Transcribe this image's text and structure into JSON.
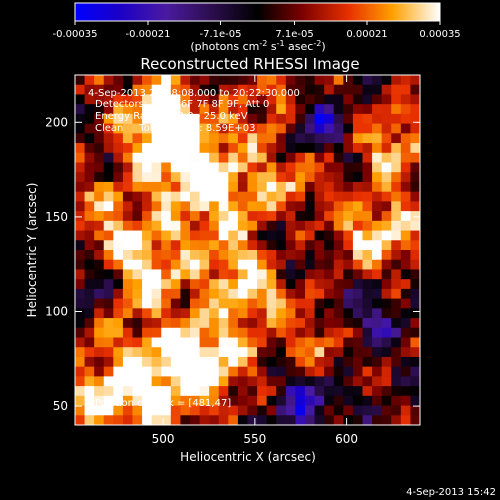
{
  "chart_data": {
    "type": "heatmap",
    "title": "Reconstructed RHESSI Image",
    "xlabel": "Heliocentric X (arcsec)",
    "ylabel": "Heliocentric Y (arcsec)",
    "xlim": [
      452,
      640
    ],
    "ylim": [
      40,
      225
    ],
    "xticks": [
      500,
      550,
      600
    ],
    "yticks": [
      50,
      100,
      150,
      200
    ],
    "colorbar": {
      "range": [
        -0.00035,
        0.00035
      ],
      "ticks": [
        "-0.00035",
        "-0.00021",
        "-7.1e-05",
        "7.1e-05",
        "0.00021",
        "0.00035"
      ],
      "tick_values": [
        -0.00035,
        -0.00021,
        -7.1e-05,
        7.1e-05,
        0.00021,
        0.00035
      ],
      "label_main": "(photons cm",
      "label_sup1": "-2",
      "label_mid": " s",
      "label_sup2": "-1",
      "label_end": " asec",
      "label_sup3": "-2",
      "label_close": ")"
    },
    "annotations": [
      "4-Sep-2013 20:18:08.000 to 20:22:30.000",
      "Detectors: 3F 5F 6F 7F 8F 9F, Att 0",
      "Energy Range: 12.0 - 25.0 keV",
      "Clean     Total counts: 8.59E+03"
    ],
    "peak_label": "Position of Peak = [481,47]",
    "grid": false
  },
  "timestamp": "4-Sep-2013 15:42"
}
